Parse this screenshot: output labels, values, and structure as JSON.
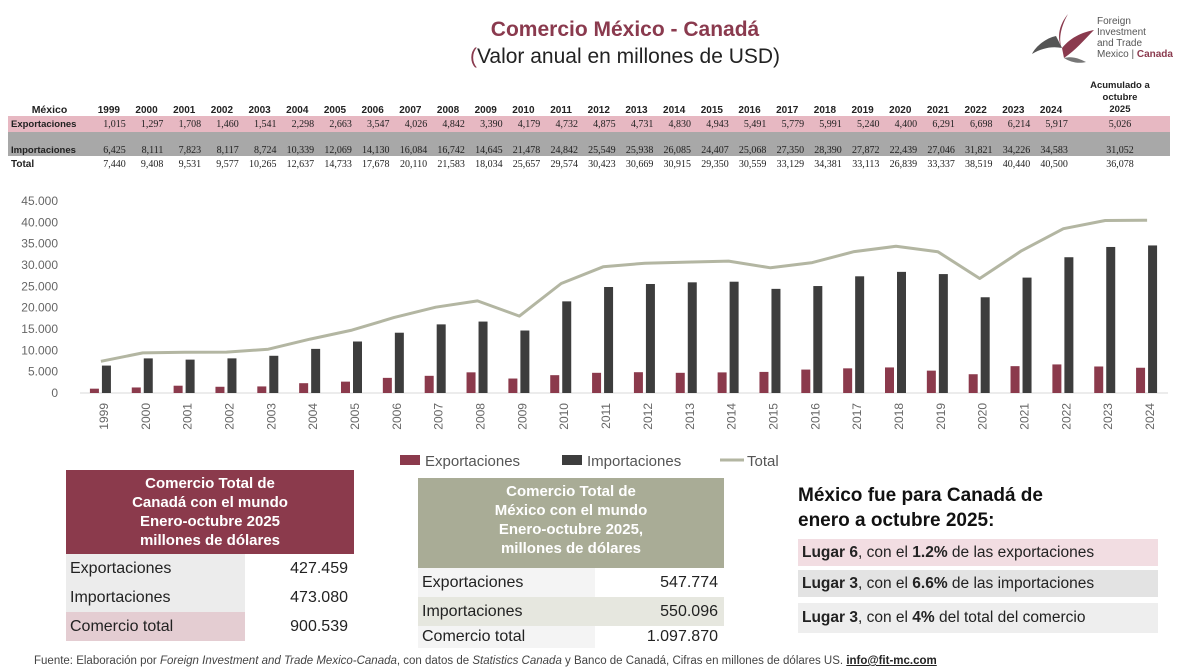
{
  "header": {
    "title": "Comercio México - Canadá",
    "subtitle_open": "(",
    "subtitle_text": "Valor anual en millones de USD)"
  },
  "logo": {
    "line1": "Foreign",
    "line2": "Investment",
    "line3": "and Trade",
    "line4a": "Mexico | ",
    "line4b": "Canada"
  },
  "table": {
    "row_label": "México",
    "years": [
      "1999",
      "2000",
      "2001",
      "2002",
      "2003",
      "2004",
      "2005",
      "2006",
      "2007",
      "2008",
      "2009",
      "2010",
      "2011",
      "2012",
      "2013",
      "2014",
      "2015",
      "2016",
      "2017",
      "2018",
      "2019",
      "2020",
      "2021",
      "2022",
      "2023",
      "2024"
    ],
    "acc_label_1": "Acumulado a",
    "acc_label_2": "octubre",
    "acc_label_3": "2025",
    "rows": [
      {
        "label": "Exportaciones",
        "values": [
          "1,015",
          "1,297",
          "1,708",
          "1,460",
          "1,541",
          "2,298",
          "2,663",
          "3,547",
          "4,026",
          "4,842",
          "3,390",
          "4,179",
          "4,732",
          "4,875",
          "4,731",
          "4,830",
          "4,943",
          "5,491",
          "5,779",
          "5,991",
          "5,240",
          "4,400",
          "6,291",
          "6,698",
          "6,214",
          "5,917"
        ],
        "acc": "5,026"
      },
      {
        "label": "Importaciones",
        "values": [
          "6,425",
          "8,111",
          "7,823",
          "8,117",
          "8,724",
          "10,339",
          "12,069",
          "14,130",
          "16,084",
          "16,742",
          "14,645",
          "21,478",
          "24,842",
          "25,549",
          "25,938",
          "26,085",
          "24,407",
          "25,068",
          "27,350",
          "28,390",
          "27,872",
          "22,439",
          "27,046",
          "31,821",
          "34,226",
          "34,583"
        ],
        "acc": "31,052"
      },
      {
        "label": "Total",
        "values": [
          "7,440",
          "9,408",
          "9,531",
          "9,577",
          "10,265",
          "12,637",
          "14,733",
          "17,678",
          "20,110",
          "21,583",
          "18,034",
          "25,657",
          "29,574",
          "30,423",
          "30,669",
          "30,915",
          "29,350",
          "30,559",
          "33,129",
          "34,381",
          "33,113",
          "26,839",
          "33,337",
          "38,519",
          "40,440",
          "40,500"
        ],
        "acc": "36,078"
      }
    ]
  },
  "chart_data": {
    "type": "bar",
    "title": "",
    "categories": [
      "1999",
      "2000",
      "2001",
      "2002",
      "2003",
      "2004",
      "2005",
      "2006",
      "2007",
      "2008",
      "2009",
      "2010",
      "2011",
      "2012",
      "2013",
      "2014",
      "2015",
      "2016",
      "2017",
      "2018",
      "2019",
      "2020",
      "2021",
      "2022",
      "2023",
      "2024"
    ],
    "series": [
      {
        "name": "Exportaciones",
        "kind": "bar",
        "color": "#8b3a4c",
        "values": [
          1015,
          1297,
          1708,
          1460,
          1541,
          2298,
          2663,
          3547,
          4026,
          4842,
          3390,
          4179,
          4732,
          4875,
          4731,
          4830,
          4943,
          5491,
          5779,
          5991,
          5240,
          4400,
          6291,
          6698,
          6214,
          5917
        ]
      },
      {
        "name": "Importaciones",
        "kind": "bar",
        "color": "#3d3d3d",
        "values": [
          6425,
          8111,
          7823,
          8117,
          8724,
          10339,
          12069,
          14130,
          16084,
          16742,
          14645,
          21478,
          24842,
          25549,
          25938,
          26085,
          24407,
          25068,
          27350,
          28390,
          27872,
          22439,
          27046,
          31821,
          34226,
          34583
        ]
      },
      {
        "name": "Total",
        "kind": "line",
        "color": "#b3b6a2",
        "values": [
          7440,
          9408,
          9531,
          9577,
          10265,
          12637,
          14733,
          17678,
          20110,
          21583,
          18034,
          25657,
          29574,
          30423,
          30669,
          30915,
          29350,
          30559,
          33129,
          34381,
          33113,
          26839,
          33337,
          38519,
          40440,
          40500
        ]
      }
    ],
    "ylim": [
      0,
      45000
    ],
    "yticks": [
      "0",
      "5.000",
      "10.000",
      "15.000",
      "20.000",
      "25.000",
      "30.000",
      "35.000",
      "40.000",
      "45.000"
    ],
    "legend": "bottom",
    "grid": false
  },
  "canada_box": {
    "title_1": "Comercio Total de",
    "title_2": "Canadá con el mundo",
    "title_3": "Enero-octubre 2025",
    "title_4": "millones de dólares",
    "rows": [
      {
        "label": "Exportaciones",
        "value": "427.459"
      },
      {
        "label": "Importaciones",
        "value": "473.080"
      },
      {
        "label": "Comercio total",
        "value": "900.539"
      }
    ]
  },
  "mexico_box": {
    "title_1": "Comercio Total de",
    "title_2": "México con el mundo",
    "title_3": "Enero-octubre 2025,",
    "title_4": "millones de dólares",
    "rows": [
      {
        "label": "Exportaciones",
        "value": "547.774"
      },
      {
        "label": "Importaciones",
        "value": "550.096"
      },
      {
        "label": "Comercio total",
        "value": "1.097.870"
      }
    ]
  },
  "ranking": {
    "title_1": "México fue para Canadá de",
    "title_2": "enero a octubre 2025:",
    "items": [
      {
        "place": "Lugar 6",
        "mid": ", con el ",
        "pct": "1.2%",
        "tail": " de las exportaciones"
      },
      {
        "place": "Lugar 3",
        "mid": ", con el ",
        "pct": "6.6%",
        "tail": " de las importaciones"
      },
      {
        "place": "Lugar 3",
        "mid": ", con el ",
        "pct": "4%",
        "tail": " del total del comercio"
      }
    ]
  },
  "source": {
    "p1": "Fuente: Elaboración por ",
    "p2": "Foreign Investment and Trade Mexico-Canada",
    "p3": ", con datos de ",
    "p4": "Statistics Canada",
    "p5": " y Banco de Canadá, Cifras en millones de dólares US.  ",
    "email": "info@fit-mc.com"
  },
  "colors": {
    "accent": "#8a3a4e",
    "export_bar": "#8b3a4c",
    "import_bar": "#3d3d3d",
    "total_line": "#b3b6a2",
    "canada_head": "#8b3a4c",
    "mexico_head": "#a9ac96"
  }
}
